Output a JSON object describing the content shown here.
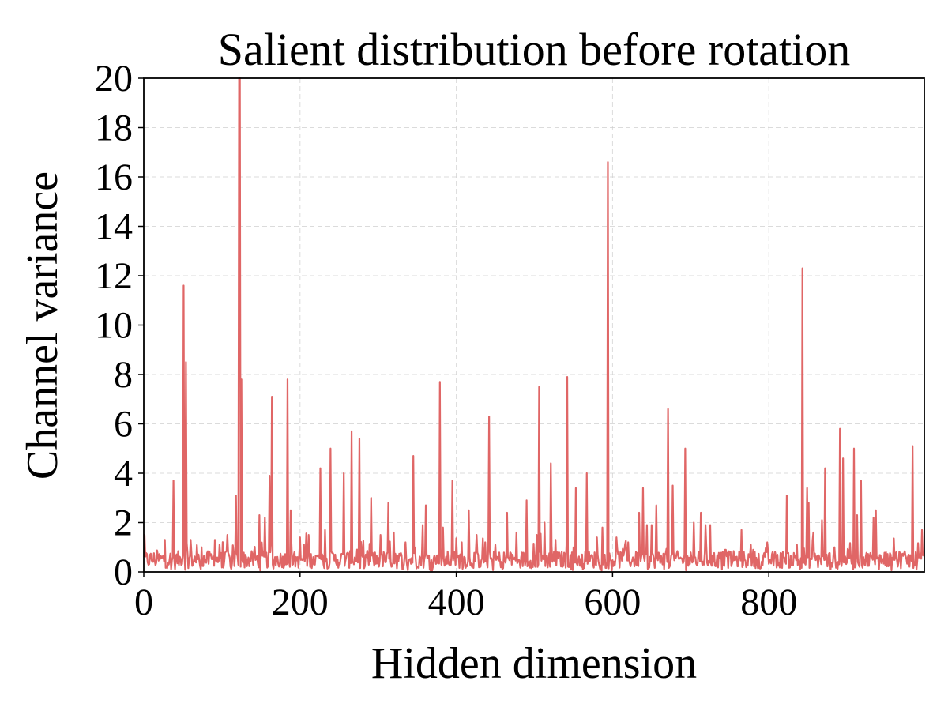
{
  "chart_data": {
    "type": "line",
    "title": "Salient distribution before rotation",
    "xlabel": "Hidden dimension",
    "ylabel": "Channel variance",
    "xlim": [
      0,
      999
    ],
    "ylim": [
      0,
      20
    ],
    "x_ticks": [
      0,
      200,
      400,
      600,
      800
    ],
    "x_tick_labels": [
      "0",
      "200",
      "400",
      "600",
      "800"
    ],
    "y_ticks": [
      0,
      2,
      4,
      6,
      8,
      10,
      12,
      14,
      16,
      18,
      20
    ],
    "y_tick_labels": [
      "0",
      "2",
      "4",
      "6",
      "8",
      "10",
      "12",
      "14",
      "16",
      "18",
      "20"
    ],
    "grid": true,
    "series": [
      {
        "color": "#e06666",
        "n_points": 1000,
        "baseline_mean": 0.5,
        "baseline_noise": 0.35,
        "peaks": [
          {
            "x": 1,
            "y": 1.5
          },
          {
            "x": 27,
            "y": 1.3
          },
          {
            "x": 38,
            "y": 3.7
          },
          {
            "x": 51,
            "y": 11.6
          },
          {
            "x": 54,
            "y": 8.5
          },
          {
            "x": 60,
            "y": 1.3
          },
          {
            "x": 74,
            "y": 1.0
          },
          {
            "x": 91,
            "y": 1.3
          },
          {
            "x": 107,
            "y": 1.5
          },
          {
            "x": 118,
            "y": 3.1
          },
          {
            "x": 122,
            "y": 20.0
          },
          {
            "x": 123,
            "y": 20.0
          },
          {
            "x": 125,
            "y": 7.8
          },
          {
            "x": 148,
            "y": 2.3
          },
          {
            "x": 155,
            "y": 2.2
          },
          {
            "x": 161,
            "y": 3.9
          },
          {
            "x": 164,
            "y": 7.1
          },
          {
            "x": 184,
            "y": 7.8
          },
          {
            "x": 188,
            "y": 2.5
          },
          {
            "x": 200,
            "y": 1.4
          },
          {
            "x": 211,
            "y": 1.5
          },
          {
            "x": 226,
            "y": 4.2
          },
          {
            "x": 232,
            "y": 1.7
          },
          {
            "x": 239,
            "y": 5.0
          },
          {
            "x": 256,
            "y": 4.0
          },
          {
            "x": 266,
            "y": 5.7
          },
          {
            "x": 276,
            "y": 5.4
          },
          {
            "x": 291,
            "y": 3.0
          },
          {
            "x": 303,
            "y": 1.5
          },
          {
            "x": 313,
            "y": 2.8
          },
          {
            "x": 320,
            "y": 1.6
          },
          {
            "x": 335,
            "y": 1.2
          },
          {
            "x": 345,
            "y": 4.7
          },
          {
            "x": 357,
            "y": 1.9
          },
          {
            "x": 361,
            "y": 2.7
          },
          {
            "x": 379,
            "y": 7.7
          },
          {
            "x": 383,
            "y": 1.8
          },
          {
            "x": 395,
            "y": 3.7
          },
          {
            "x": 407,
            "y": 1.2
          },
          {
            "x": 416,
            "y": 2.5
          },
          {
            "x": 426,
            "y": 1.5
          },
          {
            "x": 442,
            "y": 6.3
          },
          {
            "x": 450,
            "y": 1.1
          },
          {
            "x": 465,
            "y": 2.4
          },
          {
            "x": 477,
            "y": 1.6
          },
          {
            "x": 490,
            "y": 2.9
          },
          {
            "x": 503,
            "y": 1.5
          },
          {
            "x": 506,
            "y": 7.5
          },
          {
            "x": 513,
            "y": 2.0
          },
          {
            "x": 521,
            "y": 4.4
          },
          {
            "x": 527,
            "y": 1.3
          },
          {
            "x": 542,
            "y": 7.9
          },
          {
            "x": 553,
            "y": 3.4
          },
          {
            "x": 567,
            "y": 4.0
          },
          {
            "x": 580,
            "y": 1.4
          },
          {
            "x": 587,
            "y": 1.8
          },
          {
            "x": 594,
            "y": 16.6
          },
          {
            "x": 605,
            "y": 1.4
          },
          {
            "x": 620,
            "y": 1.2
          },
          {
            "x": 634,
            "y": 2.4
          },
          {
            "x": 639,
            "y": 3.4
          },
          {
            "x": 644,
            "y": 1.9
          },
          {
            "x": 650,
            "y": 1.9
          },
          {
            "x": 656,
            "y": 2.7
          },
          {
            "x": 671,
            "y": 6.6
          },
          {
            "x": 677,
            "y": 3.5
          },
          {
            "x": 693,
            "y": 5.0
          },
          {
            "x": 704,
            "y": 2.0
          },
          {
            "x": 713,
            "y": 2.4
          },
          {
            "x": 719,
            "y": 1.9
          },
          {
            "x": 725,
            "y": 1.9
          },
          {
            "x": 745,
            "y": 0.9
          },
          {
            "x": 765,
            "y": 1.7
          },
          {
            "x": 780,
            "y": 0.9
          },
          {
            "x": 798,
            "y": 1.2
          },
          {
            "x": 823,
            "y": 3.1
          },
          {
            "x": 836,
            "y": 1.1
          },
          {
            "x": 843,
            "y": 12.3
          },
          {
            "x": 849,
            "y": 3.4
          },
          {
            "x": 851,
            "y": 2.8
          },
          {
            "x": 857,
            "y": 1.6
          },
          {
            "x": 868,
            "y": 2.1
          },
          {
            "x": 872,
            "y": 4.2
          },
          {
            "x": 884,
            "y": 1.0
          },
          {
            "x": 891,
            "y": 5.8
          },
          {
            "x": 895,
            "y": 4.6
          },
          {
            "x": 909,
            "y": 5.0
          },
          {
            "x": 913,
            "y": 2.3
          },
          {
            "x": 918,
            "y": 3.7
          },
          {
            "x": 934,
            "y": 2.2
          },
          {
            "x": 937,
            "y": 2.5
          },
          {
            "x": 950,
            "y": 0.8
          },
          {
            "x": 963,
            "y": 0.8
          },
          {
            "x": 984,
            "y": 5.1
          },
          {
            "x": 996,
            "y": 1.7
          }
        ]
      }
    ]
  }
}
